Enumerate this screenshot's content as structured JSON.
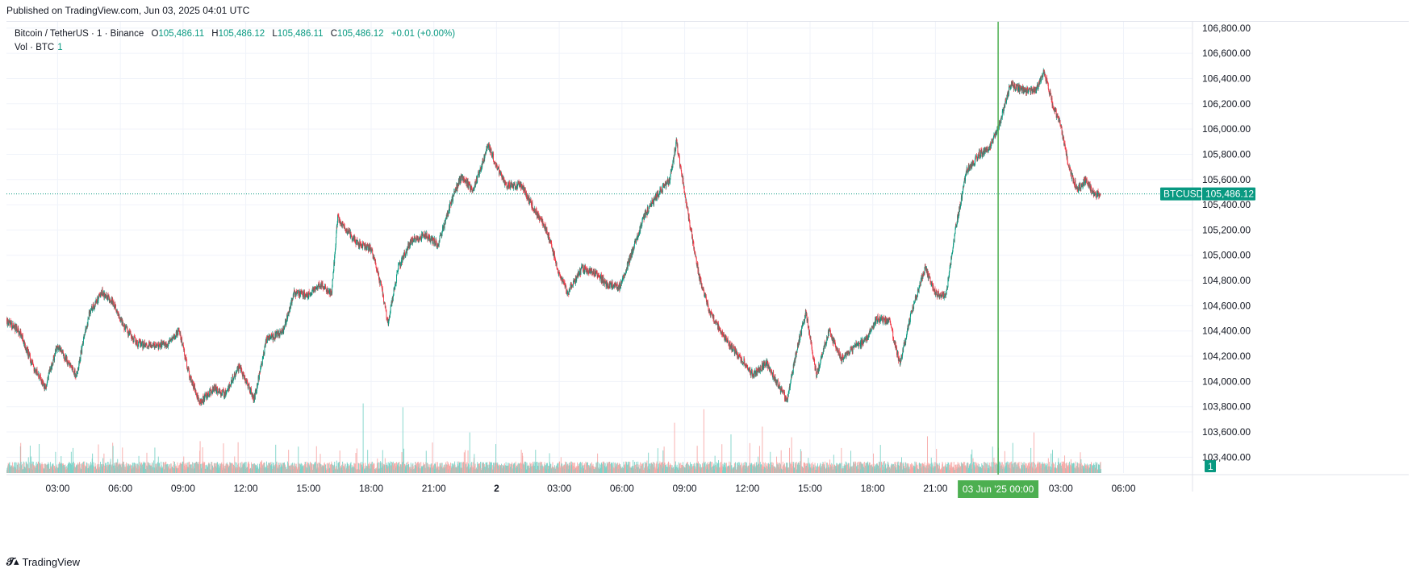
{
  "header": {
    "published": "Published on TradingView.com, Jun 03, 2025 04:01 UTC"
  },
  "legend": {
    "symbol": "Bitcoin / TetherUS · 1 · Binance",
    "open_label": "O",
    "open": "105,486.11",
    "high_label": "H",
    "high": "105,486.12",
    "low_label": "L",
    "low": "105,486.11",
    "close_label": "C",
    "close": "105,486.12",
    "change": "+0.01 (+0.00%)",
    "volume_label": "Vol · BTC",
    "volume": "1"
  },
  "footer": {
    "logo_text": "TradingView"
  },
  "colors": {
    "up": "#089981",
    "down": "#f23645",
    "up_volume": "#7dd3c8",
    "down_volume": "#f7a9a7",
    "price_line": "#089981",
    "time_marker": "#4caf50",
    "grid": "#f0f3fa",
    "text": "#131722"
  },
  "chart_data": {
    "type": "candlestick",
    "symbol": "BTCUSDT",
    "interval": "1",
    "exchange": "Binance",
    "current_price": 105486.12,
    "current_price_label": "105,486.12",
    "symbol_tag": "BTCUSDT",
    "volume_tag": "1",
    "ylim": [
      103300,
      106850
    ],
    "y_ticks": [
      103400,
      103600,
      103800,
      104000,
      104200,
      104400,
      104600,
      104800,
      105000,
      105200,
      105400,
      105600,
      105800,
      106000,
      106200,
      106400,
      106600,
      106800
    ],
    "y_tick_labels": [
      "103,400.00",
      "103,600.00",
      "103,800.00",
      "104,000.00",
      "104,200.00",
      "104,400.00",
      "104,600.00",
      "104,800.00",
      "105,000.00",
      "105,200.00",
      "105,400.00",
      "105,600.00",
      "105,800.00",
      "106,000.00",
      "106,200.00",
      "106,400.00",
      "106,600.00",
      "106,800.00"
    ],
    "x_range_hours": [
      1.0,
      31.8
    ],
    "x_ticks": [
      {
        "hour": 3,
        "label": "03:00"
      },
      {
        "hour": 6,
        "label": "06:00"
      },
      {
        "hour": 9,
        "label": "09:00"
      },
      {
        "hour": 12,
        "label": "12:00"
      },
      {
        "hour": 15,
        "label": "15:00"
      },
      {
        "hour": 18,
        "label": "18:00"
      },
      {
        "hour": 21,
        "label": "21:00"
      },
      {
        "hour": 24,
        "label": "2"
      },
      {
        "hour": 27,
        "label": "03:00"
      },
      {
        "hour": 30,
        "label": "06:00"
      },
      {
        "hour": 33,
        "label": "09:00"
      },
      {
        "hour": 36,
        "label": "12:00"
      },
      {
        "hour": 39,
        "label": "15:00"
      },
      {
        "hour": 42,
        "label": "18:00"
      },
      {
        "hour": 45,
        "label": "21:00"
      },
      {
        "hour": 51,
        "label": "03:00"
      },
      {
        "hour": 54,
        "label": "06:00"
      }
    ],
    "time_marker": {
      "hour": 48,
      "label": "03 Jun '25   00:00"
    },
    "x_axis_start_hour": 0.55,
    "x_axis_end_hour": 57.3,
    "last_bar_hour": 52.9,
    "price_path": [
      [
        0.55,
        104480
      ],
      [
        1.2,
        104390
      ],
      [
        1.8,
        104130
      ],
      [
        2.4,
        103950
      ],
      [
        3.0,
        104290
      ],
      [
        3.5,
        104150
      ],
      [
        3.9,
        104050
      ],
      [
        4.5,
        104530
      ],
      [
        5.1,
        104710
      ],
      [
        5.6,
        104640
      ],
      [
        6.2,
        104430
      ],
      [
        6.8,
        104300
      ],
      [
        7.6,
        104280
      ],
      [
        8.3,
        104300
      ],
      [
        8.8,
        104410
      ],
      [
        9.3,
        104050
      ],
      [
        9.8,
        103830
      ],
      [
        10.5,
        103950
      ],
      [
        11.0,
        103900
      ],
      [
        11.7,
        104120
      ],
      [
        12.4,
        103860
      ],
      [
        13.0,
        104330
      ],
      [
        13.8,
        104400
      ],
      [
        14.3,
        104700
      ],
      [
        15.0,
        104690
      ],
      [
        15.6,
        104780
      ],
      [
        16.1,
        104690
      ],
      [
        16.4,
        105300
      ],
      [
        17.3,
        105100
      ],
      [
        18.0,
        105050
      ],
      [
        18.5,
        104740
      ],
      [
        18.8,
        104460
      ],
      [
        19.3,
        104900
      ],
      [
        19.9,
        105110
      ],
      [
        20.6,
        105160
      ],
      [
        21.2,
        105080
      ],
      [
        21.8,
        105410
      ],
      [
        22.3,
        105620
      ],
      [
        22.9,
        105520
      ],
      [
        23.6,
        105870
      ],
      [
        24.4,
        105560
      ],
      [
        25.2,
        105550
      ],
      [
        25.7,
        105390
      ],
      [
        26.4,
        105200
      ],
      [
        27.0,
        104850
      ],
      [
        27.4,
        104700
      ],
      [
        28.1,
        104900
      ],
      [
        28.8,
        104850
      ],
      [
        29.3,
        104770
      ],
      [
        29.9,
        104750
      ],
      [
        30.5,
        105030
      ],
      [
        31.1,
        105320
      ],
      [
        31.7,
        105480
      ],
      [
        32.3,
        105600
      ],
      [
        32.6,
        105900
      ],
      [
        32.9,
        105600
      ],
      [
        33.3,
        105200
      ],
      [
        33.7,
        104830
      ],
      [
        34.2,
        104550
      ],
      [
        34.9,
        104350
      ],
      [
        35.6,
        104200
      ],
      [
        36.3,
        104050
      ],
      [
        36.9,
        104150
      ],
      [
        37.4,
        104000
      ],
      [
        37.9,
        103850
      ],
      [
        38.4,
        104280
      ],
      [
        38.8,
        104550
      ],
      [
        39.3,
        104050
      ],
      [
        39.9,
        104400
      ],
      [
        40.5,
        104180
      ],
      [
        41.1,
        104270
      ],
      [
        41.7,
        104330
      ],
      [
        42.2,
        104500
      ],
      [
        42.8,
        104470
      ],
      [
        43.3,
        104140
      ],
      [
        43.9,
        104580
      ],
      [
        44.5,
        104900
      ],
      [
        45.0,
        104700
      ],
      [
        45.5,
        104680
      ],
      [
        46.0,
        105250
      ],
      [
        46.5,
        105670
      ],
      [
        47.1,
        105800
      ],
      [
        47.6,
        105850
      ],
      [
        48.1,
        106060
      ],
      [
        48.6,
        106360
      ],
      [
        49.1,
        106310
      ],
      [
        49.8,
        106300
      ],
      [
        50.2,
        106460
      ],
      [
        50.6,
        106200
      ],
      [
        51.0,
        106020
      ],
      [
        51.4,
        105680
      ],
      [
        51.8,
        105520
      ],
      [
        52.2,
        105600
      ],
      [
        52.6,
        105480
      ],
      [
        52.9,
        105486
      ]
    ],
    "volume_spikes": [
      {
        "hour": 17.6,
        "value": 0.72
      },
      {
        "hour": 19.5,
        "value": 0.68
      },
      {
        "hour": 2.1,
        "value": 0.3
      },
      {
        "hour": 9.8,
        "value": 0.33
      },
      {
        "hour": 33.9,
        "value": 0.66
      },
      {
        "hour": 32.5,
        "value": 0.52
      },
      {
        "hour": 38.1,
        "value": 0.37
      },
      {
        "hour": 36.7,
        "value": 0.48
      },
      {
        "hour": 49.7,
        "value": 0.42
      },
      {
        "hour": 35.2,
        "value": 0.4
      },
      {
        "hour": 22.7,
        "value": 0.42
      },
      {
        "hour": 44.6,
        "value": 0.38
      }
    ]
  }
}
